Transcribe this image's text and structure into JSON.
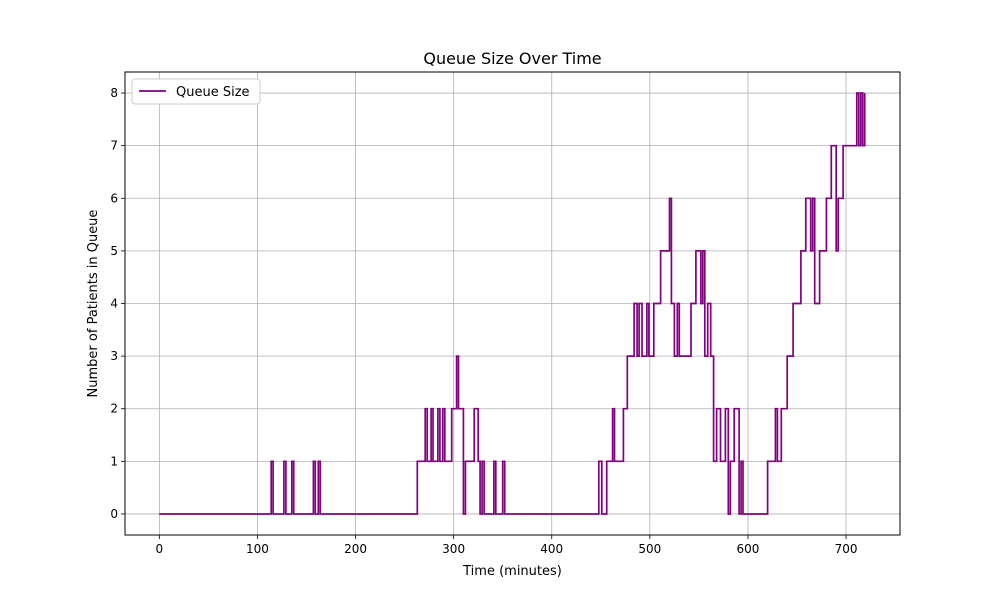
{
  "chart_data": {
    "type": "line",
    "title": "Queue Size Over Time",
    "xlabel": "Time (minutes)",
    "ylabel": "Number of Patients in Queue",
    "xlim": [
      -35,
      755
    ],
    "ylim": [
      -0.4,
      8.4
    ],
    "xticks": [
      0,
      100,
      200,
      300,
      400,
      500,
      600,
      700
    ],
    "yticks": [
      0,
      1,
      2,
      3,
      4,
      5,
      6,
      7,
      8
    ],
    "grid": true,
    "legend": {
      "position": "top-left",
      "entries": [
        "Queue Size"
      ]
    },
    "series": [
      {
        "name": "Queue Size",
        "color": "#800080",
        "step": true,
        "points": [
          [
            0,
            0
          ],
          [
            114,
            0
          ],
          [
            114,
            1
          ],
          [
            116,
            1
          ],
          [
            116,
            0
          ],
          [
            127,
            0
          ],
          [
            127,
            1
          ],
          [
            129,
            1
          ],
          [
            129,
            0
          ],
          [
            135,
            0
          ],
          [
            135,
            1
          ],
          [
            137,
            1
          ],
          [
            137,
            0
          ],
          [
            157,
            0
          ],
          [
            157,
            1
          ],
          [
            159,
            1
          ],
          [
            159,
            0
          ],
          [
            162,
            0
          ],
          [
            162,
            1
          ],
          [
            164,
            1
          ],
          [
            164,
            0
          ],
          [
            263,
            0
          ],
          [
            263,
            1
          ],
          [
            271,
            1
          ],
          [
            271,
            2
          ],
          [
            273,
            2
          ],
          [
            273,
            1
          ],
          [
            277,
            1
          ],
          [
            277,
            2
          ],
          [
            279,
            2
          ],
          [
            279,
            1
          ],
          [
            284,
            1
          ],
          [
            284,
            2
          ],
          [
            286,
            2
          ],
          [
            286,
            1
          ],
          [
            289,
            1
          ],
          [
            289,
            2
          ],
          [
            291,
            2
          ],
          [
            291,
            1
          ],
          [
            298,
            1
          ],
          [
            298,
            2
          ],
          [
            303,
            2
          ],
          [
            303,
            3
          ],
          [
            305,
            3
          ],
          [
            305,
            2
          ],
          [
            310,
            2
          ],
          [
            310,
            0
          ],
          [
            312,
            0
          ],
          [
            312,
            1
          ],
          [
            321,
            1
          ],
          [
            321,
            2
          ],
          [
            325,
            2
          ],
          [
            325,
            1
          ],
          [
            327,
            1
          ],
          [
            327,
            0
          ],
          [
            329,
            0
          ],
          [
            329,
            1
          ],
          [
            331,
            1
          ],
          [
            331,
            0
          ],
          [
            341,
            0
          ],
          [
            341,
            1
          ],
          [
            343,
            1
          ],
          [
            343,
            0
          ],
          [
            350,
            0
          ],
          [
            350,
            1
          ],
          [
            352,
            1
          ],
          [
            352,
            0
          ],
          [
            448,
            0
          ],
          [
            448,
            1
          ],
          [
            451,
            1
          ],
          [
            451,
            0
          ],
          [
            456,
            0
          ],
          [
            456,
            1
          ],
          [
            462,
            1
          ],
          [
            462,
            2
          ],
          [
            464,
            2
          ],
          [
            464,
            1
          ],
          [
            473,
            1
          ],
          [
            473,
            2
          ],
          [
            477,
            2
          ],
          [
            477,
            3
          ],
          [
            484,
            3
          ],
          [
            484,
            4
          ],
          [
            487,
            4
          ],
          [
            487,
            3
          ],
          [
            489,
            3
          ],
          [
            489,
            4
          ],
          [
            492,
            4
          ],
          [
            492,
            3
          ],
          [
            497,
            3
          ],
          [
            497,
            4
          ],
          [
            499,
            4
          ],
          [
            499,
            3
          ],
          [
            504,
            3
          ],
          [
            504,
            4
          ],
          [
            511,
            4
          ],
          [
            511,
            5
          ],
          [
            520,
            5
          ],
          [
            520,
            6
          ],
          [
            522,
            6
          ],
          [
            522,
            4
          ],
          [
            525,
            4
          ],
          [
            525,
            3
          ],
          [
            528,
            3
          ],
          [
            528,
            4
          ],
          [
            530,
            4
          ],
          [
            530,
            3
          ],
          [
            542,
            3
          ],
          [
            542,
            4
          ],
          [
            547,
            4
          ],
          [
            547,
            5
          ],
          [
            552,
            5
          ],
          [
            552,
            4
          ],
          [
            554,
            4
          ],
          [
            554,
            5
          ],
          [
            556,
            5
          ],
          [
            556,
            3
          ],
          [
            559,
            3
          ],
          [
            559,
            4
          ],
          [
            562,
            4
          ],
          [
            562,
            3
          ],
          [
            565,
            3
          ],
          [
            565,
            1
          ],
          [
            568,
            1
          ],
          [
            568,
            2
          ],
          [
            572,
            2
          ],
          [
            572,
            1
          ],
          [
            577,
            1
          ],
          [
            577,
            2
          ],
          [
            580,
            2
          ],
          [
            580,
            0
          ],
          [
            582,
            0
          ],
          [
            582,
            1
          ],
          [
            586,
            1
          ],
          [
            586,
            2
          ],
          [
            591,
            2
          ],
          [
            591,
            0
          ],
          [
            593,
            0
          ],
          [
            593,
            1
          ],
          [
            595,
            1
          ],
          [
            595,
            0
          ],
          [
            620,
            0
          ],
          [
            620,
            1
          ],
          [
            628,
            1
          ],
          [
            628,
            2
          ],
          [
            630,
            2
          ],
          [
            630,
            1
          ],
          [
            634,
            1
          ],
          [
            634,
            2
          ],
          [
            640,
            2
          ],
          [
            640,
            3
          ],
          [
            646,
            3
          ],
          [
            646,
            4
          ],
          [
            654,
            4
          ],
          [
            654,
            5
          ],
          [
            659,
            5
          ],
          [
            659,
            6
          ],
          [
            664,
            6
          ],
          [
            664,
            5
          ],
          [
            666,
            5
          ],
          [
            666,
            6
          ],
          [
            668,
            6
          ],
          [
            668,
            4
          ],
          [
            673,
            4
          ],
          [
            673,
            5
          ],
          [
            680,
            5
          ],
          [
            680,
            6
          ],
          [
            685,
            6
          ],
          [
            685,
            7
          ],
          [
            690,
            7
          ],
          [
            690,
            5
          ],
          [
            692,
            5
          ],
          [
            692,
            6
          ],
          [
            697,
            6
          ],
          [
            697,
            7
          ],
          [
            711,
            7
          ],
          [
            711,
            8
          ],
          [
            713,
            8
          ],
          [
            713,
            7
          ],
          [
            715,
            7
          ],
          [
            715,
            8
          ],
          [
            717,
            8
          ],
          [
            717,
            7
          ],
          [
            719,
            7
          ],
          [
            719,
            8
          ]
        ]
      }
    ]
  }
}
